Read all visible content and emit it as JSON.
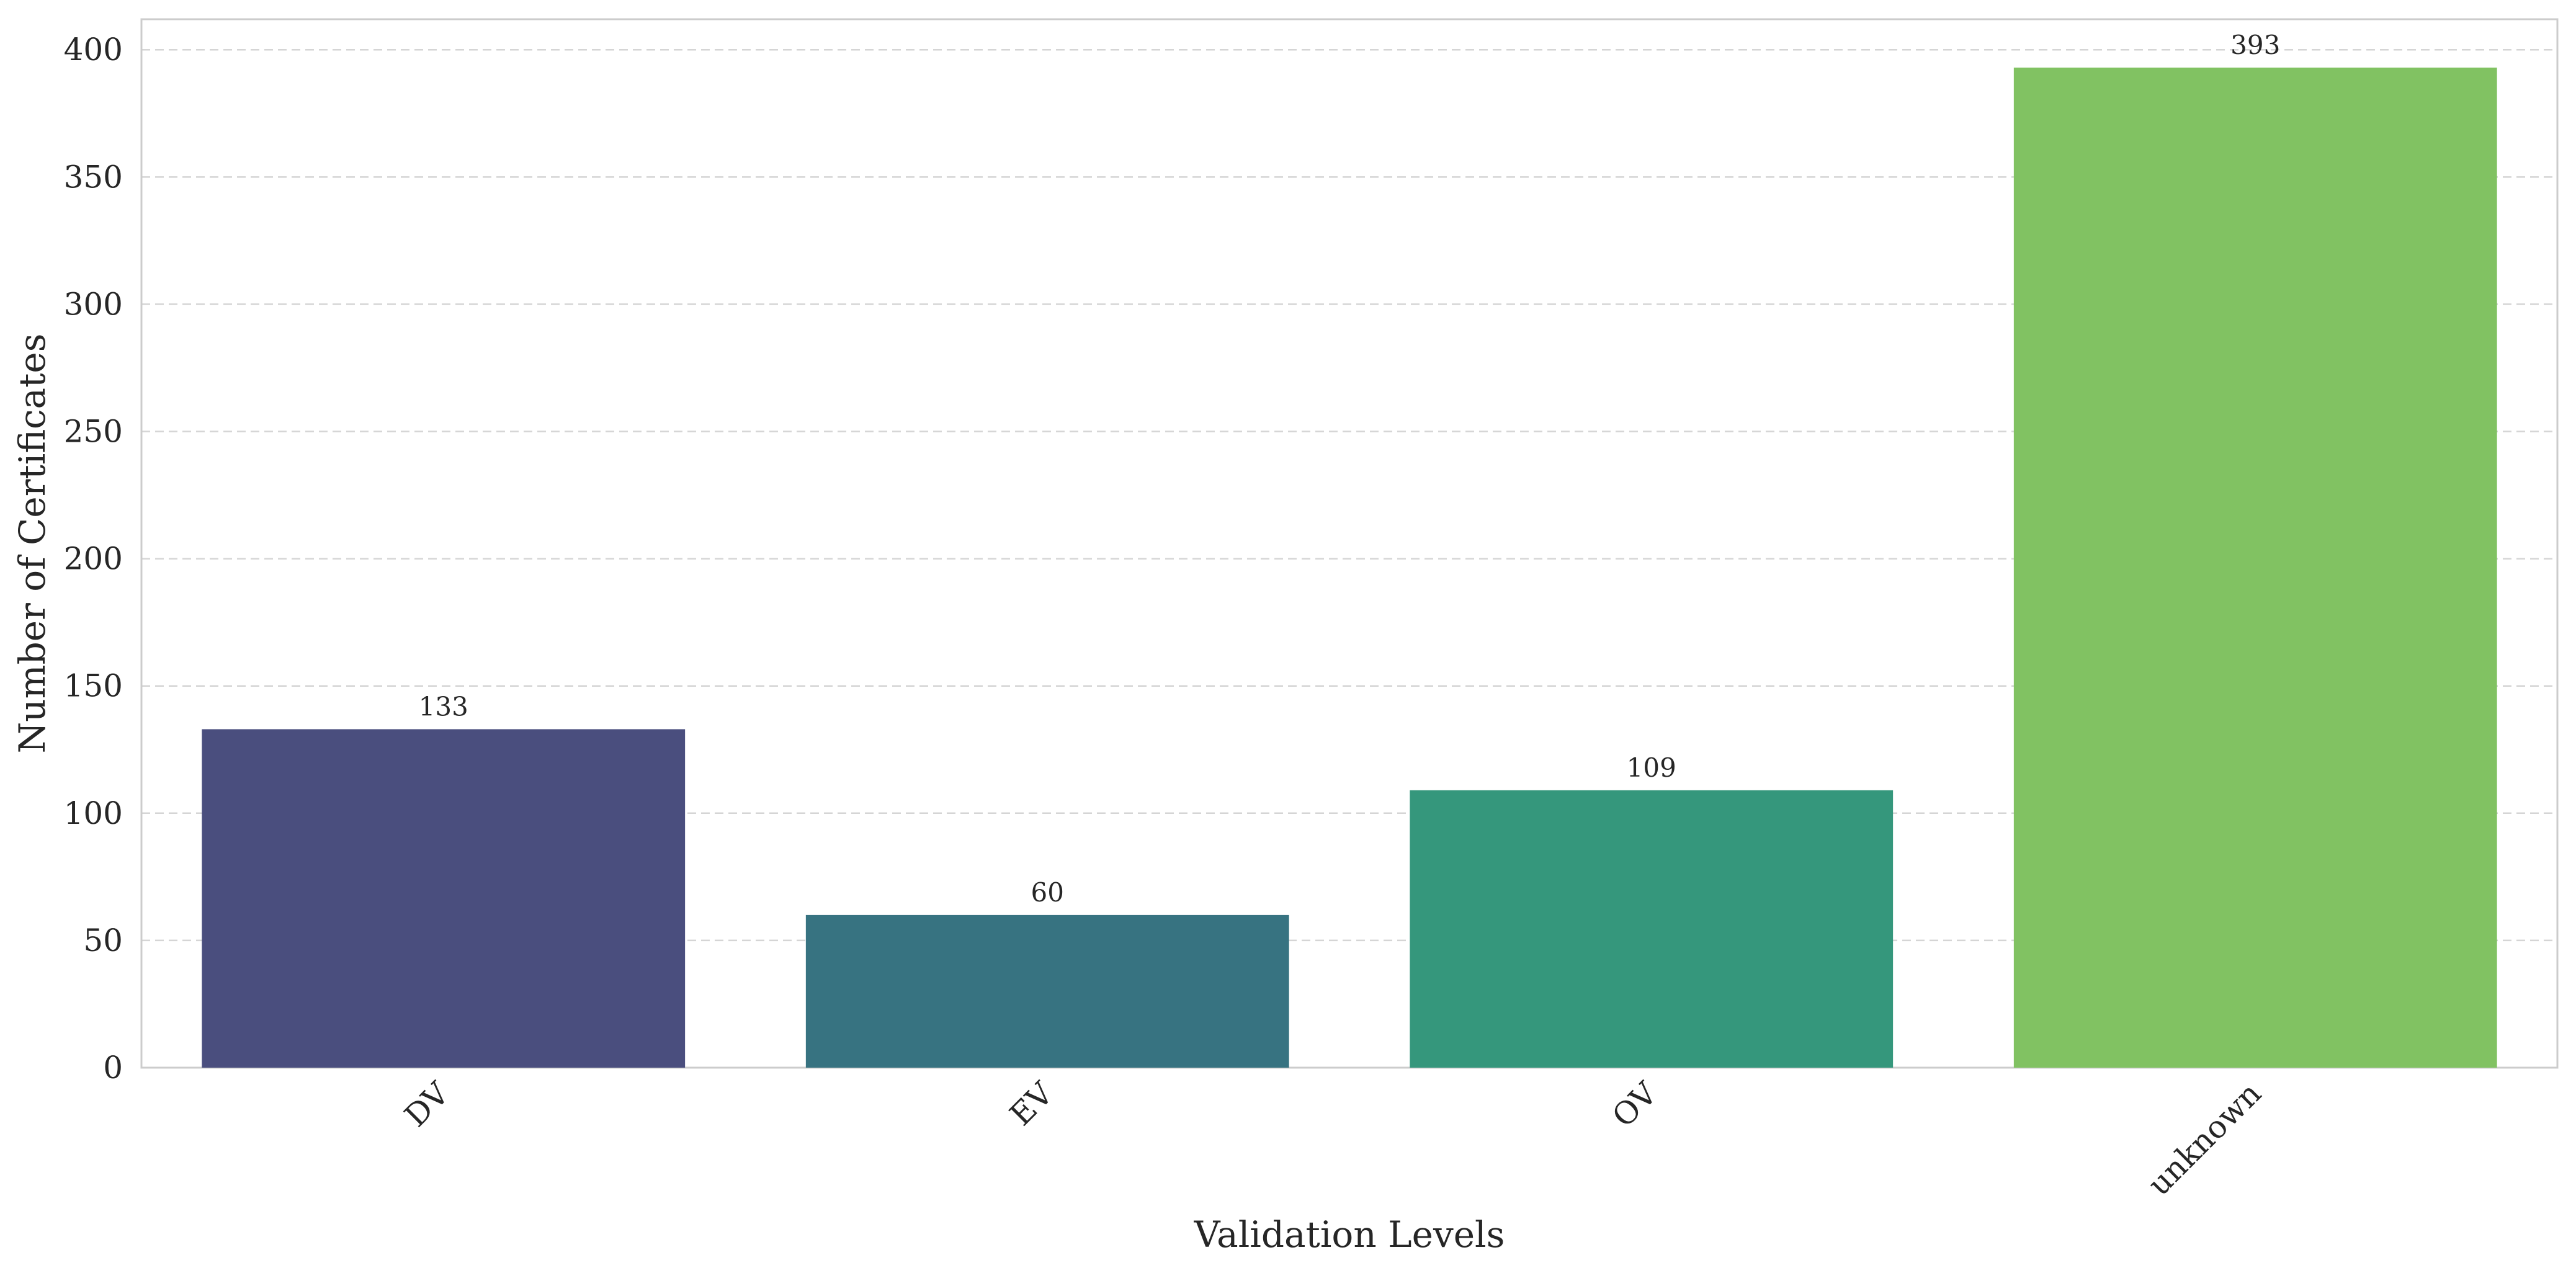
{
  "chart_data": {
    "type": "bar",
    "categories": [
      "DV",
      "EV",
      "OV",
      "unknown"
    ],
    "values": [
      133,
      60,
      109,
      393
    ],
    "colors": [
      "#4a4e7e",
      "#377381",
      "#35977c",
      "#81c262"
    ],
    "title": "",
    "xlabel": "Validation Levels",
    "ylabel": "Number of Certificates",
    "ylim": [
      0,
      412
    ],
    "yticks": [
      0,
      50,
      100,
      150,
      200,
      250,
      300,
      350,
      400
    ],
    "grid": "y-dashed",
    "legend": "none",
    "data_labels": true,
    "xtick_rotation": 45
  }
}
